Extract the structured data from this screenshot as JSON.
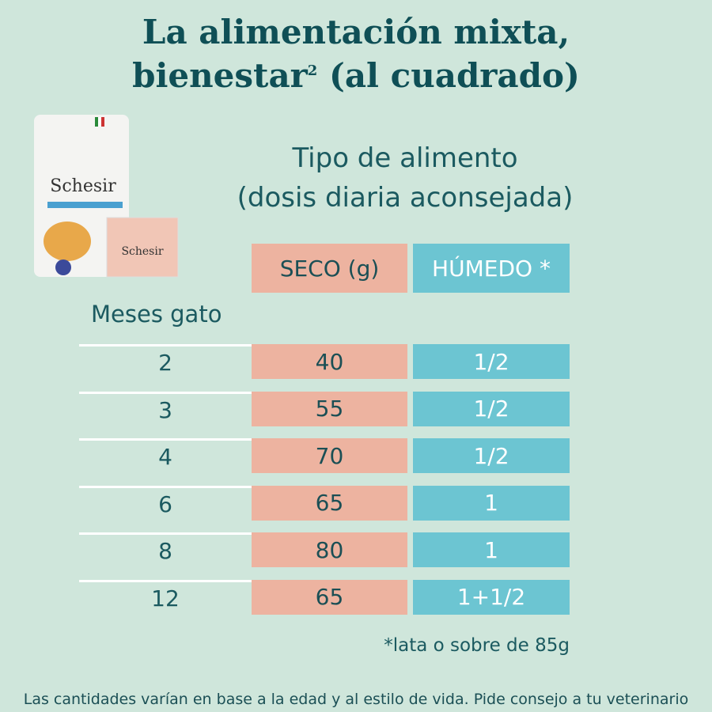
{
  "title": {
    "line1": "La alimentación mixta,",
    "line2": "bienestar",
    "superscript": "2",
    "line2_end": "(al cuadrado)"
  },
  "product": {
    "brand": "Schesir"
  },
  "subtitle": {
    "line1": "Tipo de alimento",
    "line2": "(dosis diaria aconsejada)"
  },
  "table": {
    "row_header": "Meses gato",
    "columns": [
      "SECO (g)",
      "HÚMEDO *"
    ],
    "rows": [
      [
        2,
        40,
        "1/2"
      ],
      [
        3,
        55,
        "1/2"
      ],
      [
        4,
        70,
        "1/2"
      ],
      [
        6,
        65,
        "1"
      ],
      [
        8,
        80,
        "1"
      ],
      [
        12,
        65,
        "1+1/2"
      ]
    ]
  },
  "footnote": "*lata o sobre de 85g",
  "disclaimer": "Las cantidades varían en base a la edad y al estilo de vida. Pide consejo a tu veterinario"
}
